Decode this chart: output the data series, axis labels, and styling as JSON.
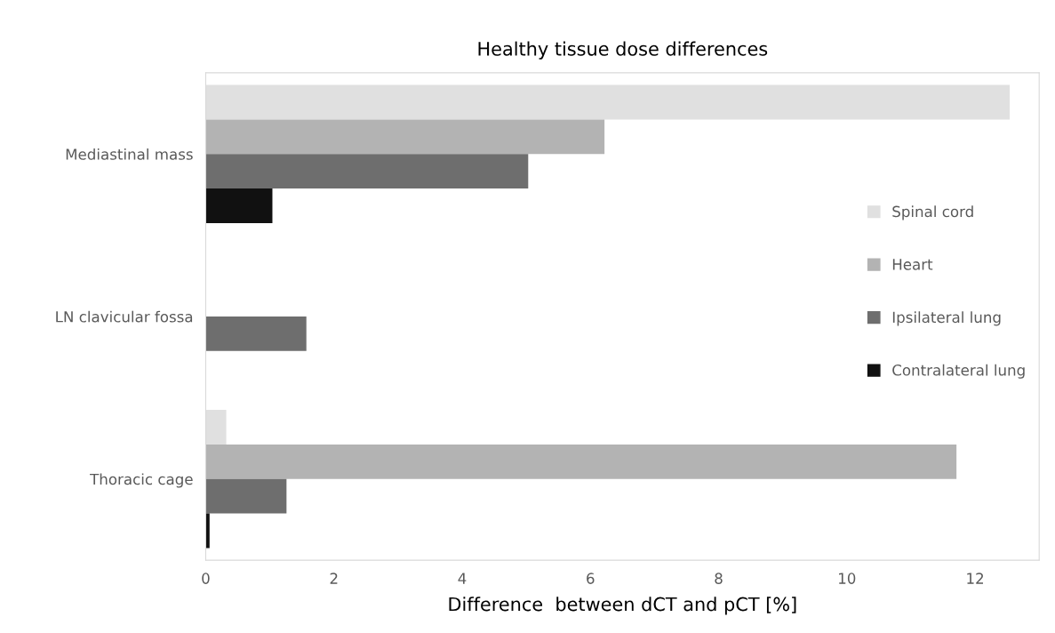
{
  "chart_data": {
    "type": "bar",
    "orientation": "horizontal",
    "title": "Healthy tissue dose differences",
    "xlabel": "Difference  between dCT and pCT [%]",
    "categories": [
      "Mediastinal mass",
      "LN clavicular fossa",
      "Thoracic cage"
    ],
    "series": [
      {
        "name": "Spinal cord",
        "color": "#e0e0e0",
        "values": [
          12.54,
          null,
          0.32
        ]
      },
      {
        "name": "Heart",
        "color": "#b3b3b3",
        "values": [
          6.22,
          null,
          11.71
        ]
      },
      {
        "name": "Ipsilateral lung",
        "color": "#6e6e6e",
        "values": [
          5.03,
          1.57,
          1.26
        ]
      },
      {
        "name": "Contralateral lung",
        "color": "#111111",
        "values": [
          1.04,
          null,
          0.06
        ]
      }
    ],
    "xlim": [
      0,
      13
    ],
    "xticks": [
      0,
      2,
      4,
      6,
      8,
      10,
      12
    ],
    "grid": false,
    "legend": "right"
  }
}
